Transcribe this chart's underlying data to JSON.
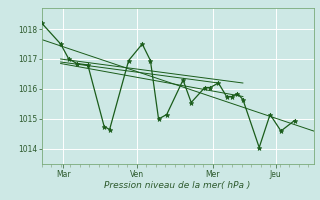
{
  "background_color": "#cde8e5",
  "grid_color": "#ffffff",
  "line_color": "#1a5c1a",
  "marker_color": "#1a5c1a",
  "text_color": "#2d5a2d",
  "xlabel": "Pression niveau de la mer( hPa )",
  "ylim": [
    1013.5,
    1018.7
  ],
  "yticks": [
    1014,
    1015,
    1016,
    1017,
    1018
  ],
  "xtick_labels": [
    "Mar",
    "Ven",
    "Mer",
    "Jeu"
  ],
  "xtick_positions": [
    0.08,
    0.35,
    0.63,
    0.86
  ],
  "series_x": [
    0.0,
    0.07,
    0.1,
    0.13,
    0.17,
    0.23,
    0.25,
    0.32,
    0.37,
    0.4,
    0.43,
    0.46,
    0.52,
    0.55,
    0.6,
    0.62,
    0.65,
    0.68,
    0.7,
    0.72,
    0.74,
    0.8,
    0.84,
    0.88,
    0.93
  ],
  "series_y": [
    1018.2,
    1017.5,
    1017.0,
    1016.85,
    1016.8,
    1014.75,
    1014.65,
    1016.95,
    1017.5,
    1016.95,
    1015.0,
    1015.15,
    1016.3,
    1015.55,
    1016.05,
    1016.05,
    1016.2,
    1015.75,
    1015.75,
    1015.85,
    1015.65,
    1014.05,
    1015.15,
    1014.6,
    1014.95
  ],
  "trend_lines": [
    {
      "x": [
        0.0,
        1.0
      ],
      "y": [
        1017.65,
        1014.6
      ]
    },
    {
      "x": [
        0.07,
        0.74
      ],
      "y": [
        1017.0,
        1016.2
      ]
    },
    {
      "x": [
        0.07,
        0.74
      ],
      "y": [
        1016.85,
        1015.75
      ]
    },
    {
      "x": [
        0.07,
        0.65
      ],
      "y": [
        1016.9,
        1016.2
      ]
    }
  ]
}
